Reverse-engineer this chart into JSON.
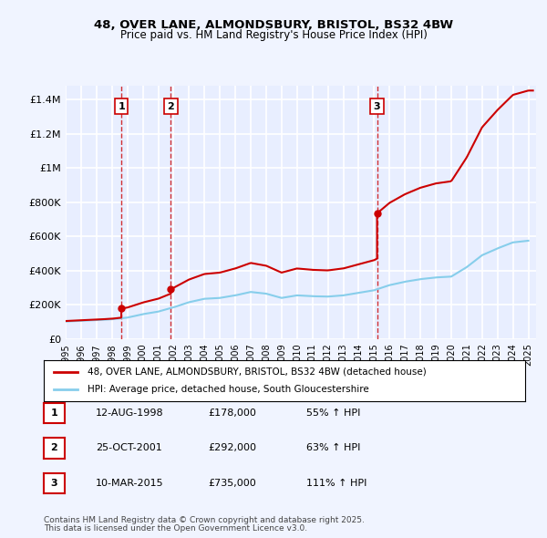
{
  "title_line1": "48, OVER LANE, ALMONDSBURY, BRISTOL, BS32 4BW",
  "title_line2": "Price paid vs. HM Land Registry's House Price Index (HPI)",
  "ylabel_ticks": [
    "£0",
    "£200K",
    "£400K",
    "£600K",
    "£800K",
    "£1M",
    "£1.2M",
    "£1.4M"
  ],
  "ytick_values": [
    0,
    200000,
    400000,
    600000,
    800000,
    1000000,
    1200000,
    1400000
  ],
  "ylim": [
    0,
    1480000
  ],
  "xlim_start": 1995.0,
  "xlim_end": 2025.5,
  "bg_color": "#f0f4ff",
  "plot_bg_color": "#e8eeff",
  "grid_color": "#ffffff",
  "red_color": "#cc0000",
  "blue_color": "#87CEEB",
  "vline_color": "#cc0000",
  "transactions": [
    {
      "date_num": 1998.61,
      "price": 178000,
      "label": "1"
    },
    {
      "date_num": 2001.82,
      "price": 292000,
      "label": "2"
    },
    {
      "date_num": 2015.19,
      "price": 735000,
      "label": "3"
    }
  ],
  "legend_entry1": "48, OVER LANE, ALMONDSBURY, BRISTOL, BS32 4BW (detached house)",
  "legend_entry2": "HPI: Average price, detached house, South Gloucestershire",
  "table_entries": [
    {
      "num": "1",
      "date": "12-AUG-1998",
      "price": "£178,000",
      "change": "55% ↑ HPI"
    },
    {
      "num": "2",
      "date": "25-OCT-2001",
      "price": "£292,000",
      "change": "63% ↑ HPI"
    },
    {
      "num": "3",
      "date": "10-MAR-2015",
      "price": "£735,000",
      "change": "111% ↑ HPI"
    }
  ],
  "footer_line1": "Contains HM Land Registry data © Crown copyright and database right 2025.",
  "footer_line2": "This data is licensed under the Open Government Licence v3.0.",
  "xticks": [
    1995,
    1996,
    1997,
    1998,
    1999,
    2000,
    2001,
    2002,
    2003,
    2004,
    2005,
    2006,
    2007,
    2008,
    2009,
    2010,
    2011,
    2012,
    2013,
    2014,
    2015,
    2016,
    2017,
    2018,
    2019,
    2020,
    2021,
    2022,
    2023,
    2024,
    2025
  ]
}
